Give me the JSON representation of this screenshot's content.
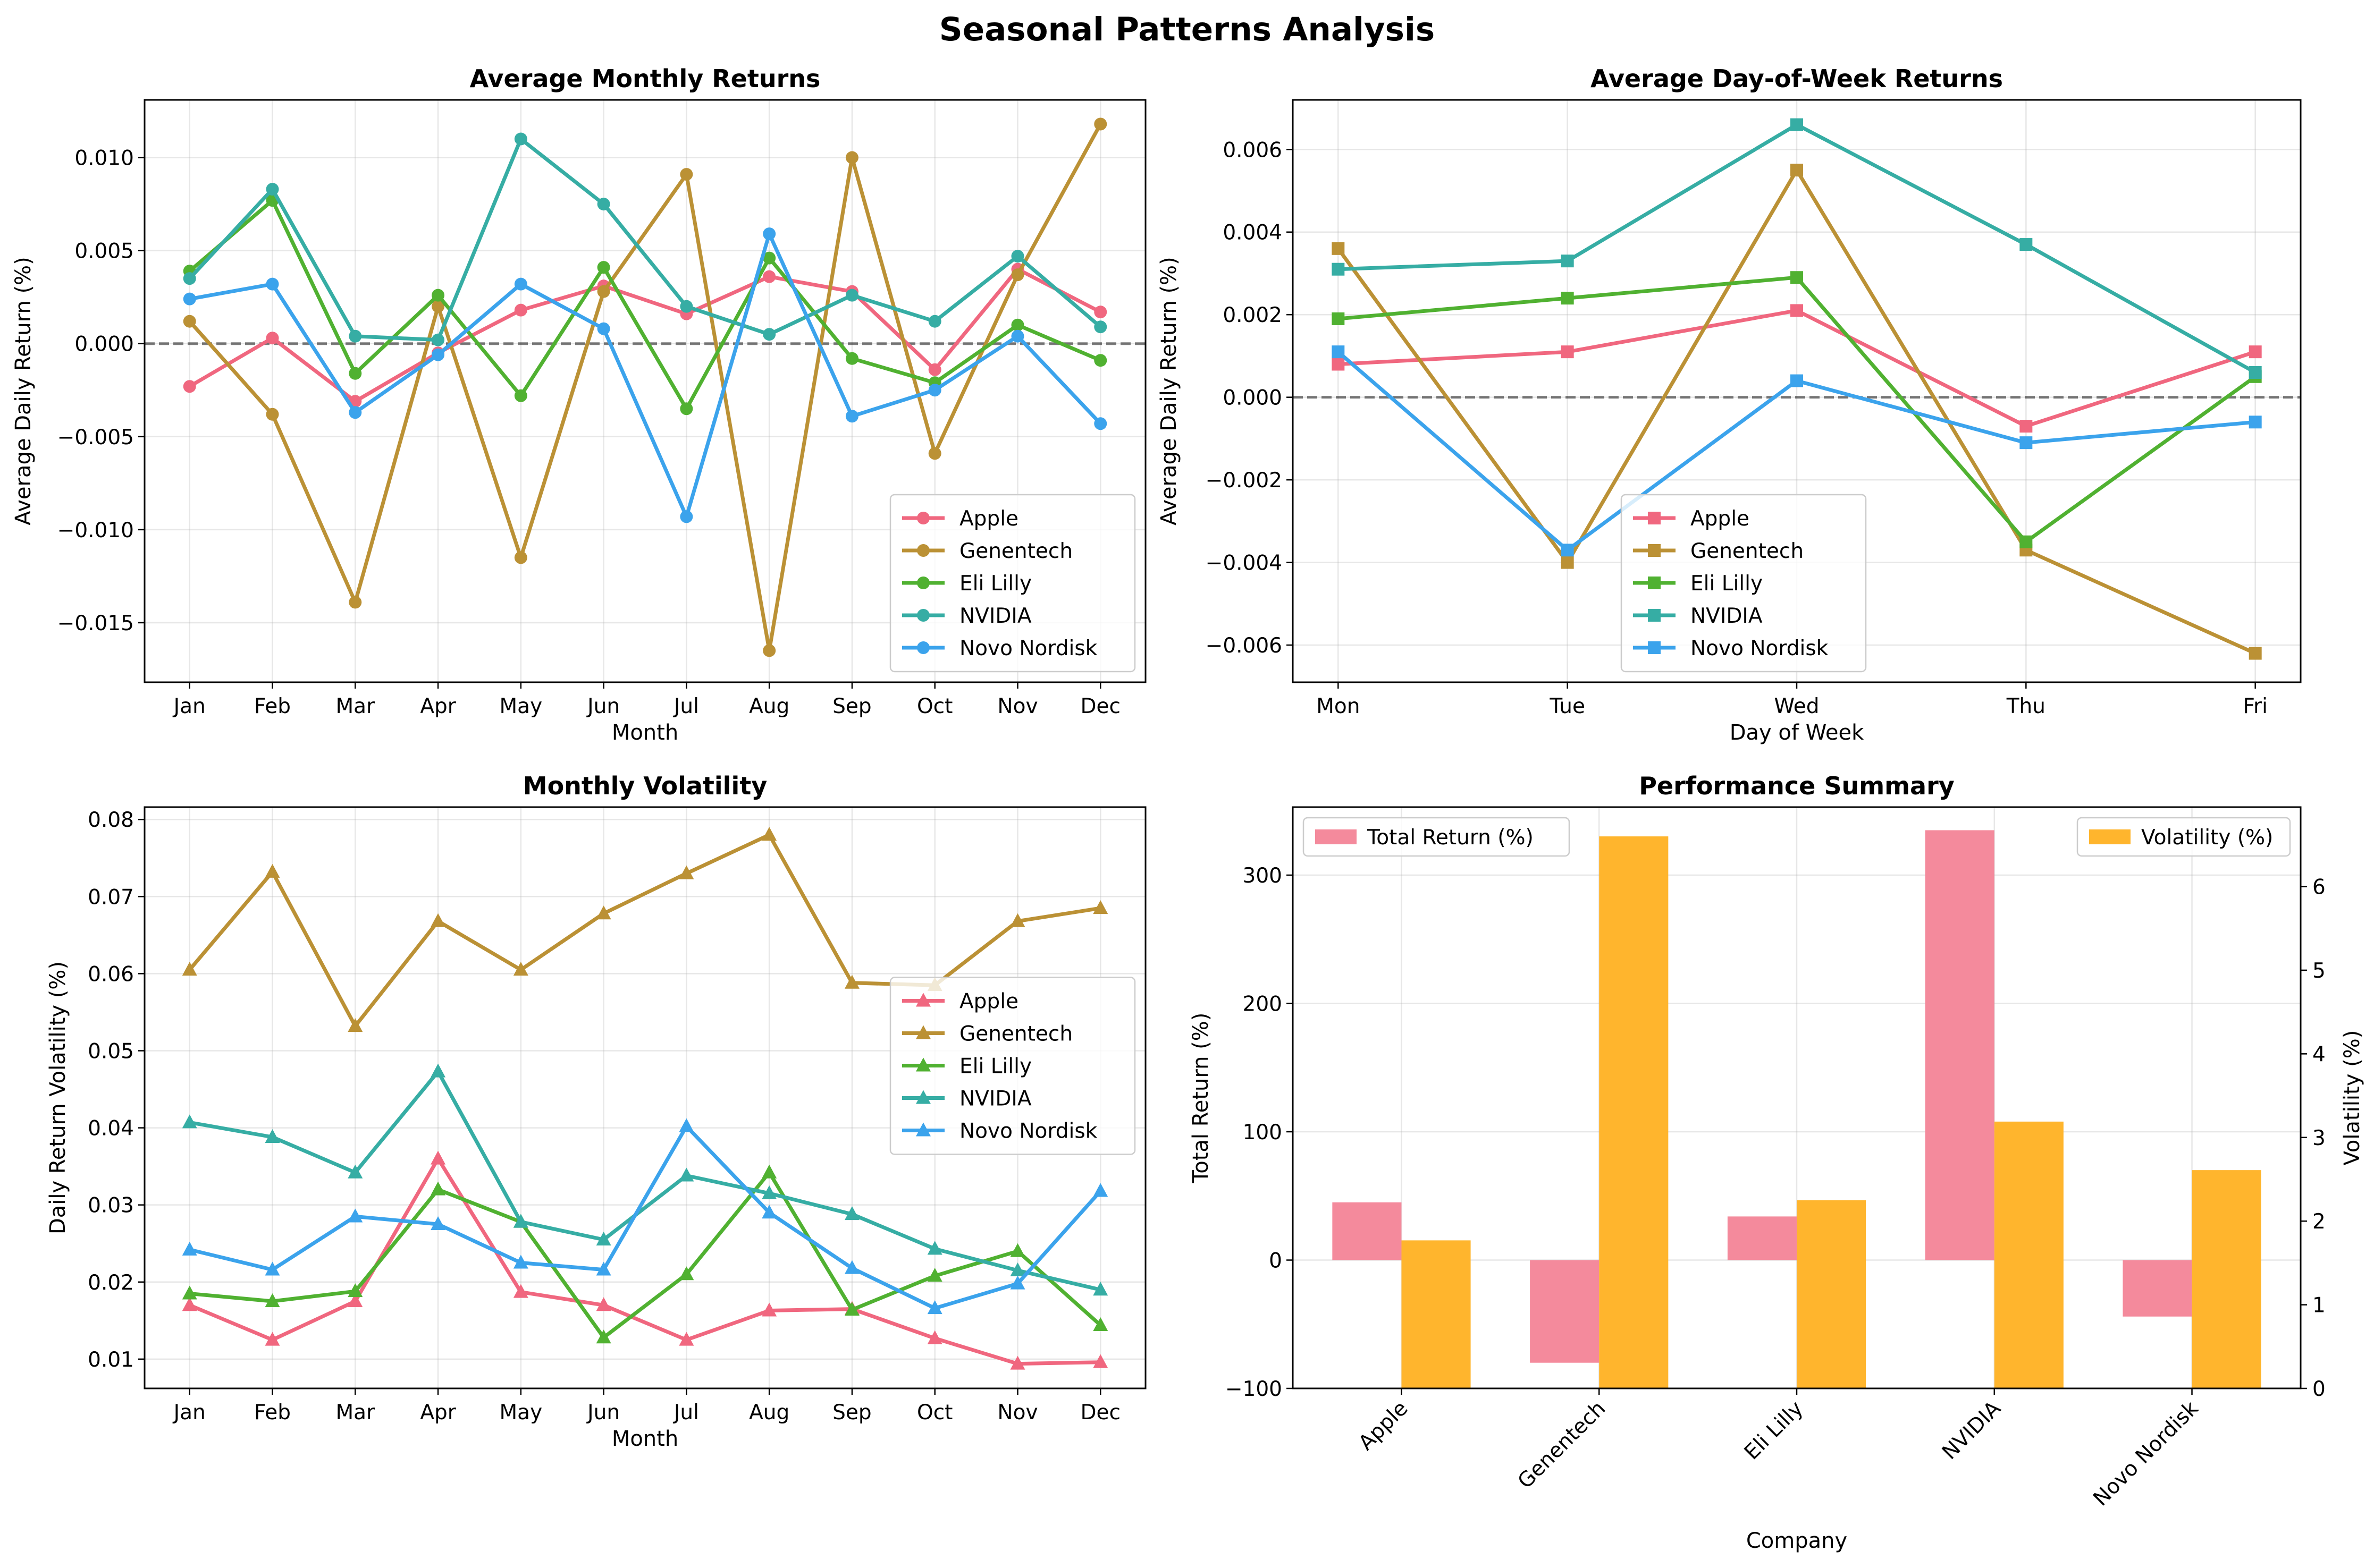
{
  "figure": {
    "title": "Seasonal Patterns Analysis"
  },
  "colors": {
    "Apple": "#f0677f",
    "Genentech": "#bb9135",
    "Eli Lilly": "#50b131",
    "NVIDIA": "#36ada4",
    "Novo Nordisk": "#3ba3ec",
    "total_return_bar": "#f48a9c",
    "volatility_bar": "#ffb52d"
  },
  "chart_data": [
    {
      "type": "line",
      "title": "Average Monthly Returns",
      "xlabel": "Month",
      "ylabel": "Average Daily Return (%)",
      "categories": [
        "Jan",
        "Feb",
        "Mar",
        "Apr",
        "May",
        "Jun",
        "Jul",
        "Aug",
        "Sep",
        "Oct",
        "Nov",
        "Dec"
      ],
      "ylim": [
        -0.0182,
        0.0131
      ],
      "yticks": [
        -0.015,
        -0.01,
        -0.005,
        0.0,
        0.005,
        0.01
      ],
      "ytick_labels": [
        "−0.015",
        "−0.010",
        "−0.005",
        "0.000",
        "0.005",
        "0.010"
      ],
      "reference_line": 0,
      "marker": "circle",
      "legend_position": "lower-right",
      "series": [
        {
          "name": "Apple",
          "values": [
            -0.0023,
            0.0003,
            -0.0031,
            -0.0005,
            0.0018,
            0.0031,
            0.0016,
            0.0036,
            0.0028,
            -0.0014,
            0.004,
            0.0017
          ]
        },
        {
          "name": "Genentech",
          "values": [
            0.0012,
            -0.0038,
            -0.0139,
            0.002,
            -0.0115,
            0.0028,
            0.0091,
            -0.0165,
            0.01,
            -0.0059,
            0.0037,
            0.0118
          ]
        },
        {
          "name": "Eli Lilly",
          "values": [
            0.0039,
            0.0077,
            -0.0016,
            0.0026,
            -0.0028,
            0.0041,
            -0.0035,
            0.0046,
            -0.0008,
            -0.0021,
            0.001,
            -0.0009
          ]
        },
        {
          "name": "NVIDIA",
          "values": [
            0.0035,
            0.0083,
            0.0004,
            0.0002,
            0.011,
            0.0075,
            0.002,
            0.0005,
            0.0026,
            0.0012,
            0.0047,
            0.0009
          ]
        },
        {
          "name": "Novo Nordisk",
          "values": [
            0.0024,
            0.0032,
            -0.0037,
            -0.0006,
            0.0032,
            0.0008,
            -0.0093,
            0.0059,
            -0.0039,
            -0.0025,
            0.0004,
            -0.0043
          ]
        }
      ]
    },
    {
      "type": "line",
      "title": "Average Day-of-Week Returns",
      "xlabel": "Day of Week",
      "ylabel": "Average Daily Return (%)",
      "categories": [
        "Mon",
        "Tue",
        "Wed",
        "Thu",
        "Fri"
      ],
      "ylim": [
        -0.0069,
        0.0072
      ],
      "yticks": [
        -0.006,
        -0.004,
        -0.002,
        0.0,
        0.002,
        0.004,
        0.006
      ],
      "ytick_labels": [
        "−0.006",
        "−0.004",
        "−0.002",
        "0.000",
        "0.002",
        "0.004",
        "0.006"
      ],
      "reference_line": 0,
      "marker": "square",
      "legend_position": "lower-center",
      "series": [
        {
          "name": "Apple",
          "values": [
            0.0008,
            0.0011,
            0.0021,
            -0.0007,
            0.0011
          ]
        },
        {
          "name": "Genentech",
          "values": [
            0.0036,
            -0.004,
            0.0055,
            -0.0037,
            -0.0062
          ]
        },
        {
          "name": "Eli Lilly",
          "values": [
            0.0019,
            0.0024,
            0.0029,
            -0.0035,
            0.0005
          ]
        },
        {
          "name": "NVIDIA",
          "values": [
            0.0031,
            0.0033,
            0.0066,
            0.0037,
            0.0006
          ]
        },
        {
          "name": "Novo Nordisk",
          "values": [
            0.0011,
            -0.0037,
            0.0004,
            -0.0011,
            -0.0006
          ]
        }
      ]
    },
    {
      "type": "line",
      "title": "Monthly Volatility",
      "xlabel": "Month",
      "ylabel": "Daily Return Volatility (%)",
      "categories": [
        "Jan",
        "Feb",
        "Mar",
        "Apr",
        "May",
        "Jun",
        "Jul",
        "Aug",
        "Sep",
        "Oct",
        "Nov",
        "Dec"
      ],
      "ylim": [
        0.0062,
        0.0816
      ],
      "yticks": [
        0.01,
        0.02,
        0.03,
        0.04,
        0.05,
        0.06,
        0.07,
        0.08
      ],
      "ytick_labels": [
        "0.01",
        "0.02",
        "0.03",
        "0.04",
        "0.05",
        "0.06",
        "0.07",
        "0.08"
      ],
      "marker": "triangle",
      "legend_position": "center-right",
      "series": [
        {
          "name": "Apple",
          "values": [
            0.017,
            0.0125,
            0.0175,
            0.036,
            0.0187,
            0.017,
            0.0125,
            0.0163,
            0.0165,
            0.0127,
            0.0094,
            0.0096
          ]
        },
        {
          "name": "Genentech",
          "values": [
            0.0605,
            0.0732,
            0.0532,
            0.0668,
            0.0605,
            0.0678,
            0.073,
            0.078,
            0.0588,
            0.0585,
            0.0668,
            0.0685
          ]
        },
        {
          "name": "Eli Lilly",
          "values": [
            0.0185,
            0.0175,
            0.0188,
            0.032,
            0.0278,
            0.0128,
            0.021,
            0.0342,
            0.0164,
            0.0208,
            0.024,
            0.0144
          ]
        },
        {
          "name": "NVIDIA",
          "values": [
            0.0407,
            0.0388,
            0.0342,
            0.0473,
            0.0278,
            0.0255,
            0.0338,
            0.0315,
            0.0288,
            0.0243,
            0.0215,
            0.019
          ]
        },
        {
          "name": "Novo Nordisk",
          "values": [
            0.0242,
            0.0216,
            0.0285,
            0.0275,
            0.0225,
            0.0216,
            0.0402,
            0.029,
            0.0218,
            0.0166,
            0.0198,
            0.0318
          ]
        }
      ]
    },
    {
      "type": "bar",
      "title": "Performance Summary",
      "xlabel": "Company",
      "ylabel": "Total Return (%)",
      "y2label": "Volatility (%)",
      "categories": [
        "Apple",
        "Genentech",
        "Eli Lilly",
        "NVIDIA",
        "Novo Nordisk"
      ],
      "ylim": [
        -100,
        353
      ],
      "yticks": [
        -100,
        0,
        100,
        200,
        300
      ],
      "ytick_labels": [
        "−100",
        "0",
        "100",
        "200",
        "300"
      ],
      "y2lim": [
        0,
        6.95
      ],
      "y2ticks": [
        0,
        1,
        2,
        3,
        4,
        5,
        6
      ],
      "y2tick_labels": [
        "0",
        "1",
        "2",
        "3",
        "4",
        "5",
        "6"
      ],
      "series": [
        {
          "name": "Total Return (%)",
          "axis": "left",
          "values": [
            45,
            -80,
            34,
            335,
            -44
          ],
          "legend_position": "upper-left"
        },
        {
          "name": "Volatility (%)",
          "axis": "right",
          "values": [
            1.77,
            6.6,
            2.25,
            3.19,
            2.61
          ],
          "legend_position": "upper-right"
        }
      ]
    }
  ]
}
